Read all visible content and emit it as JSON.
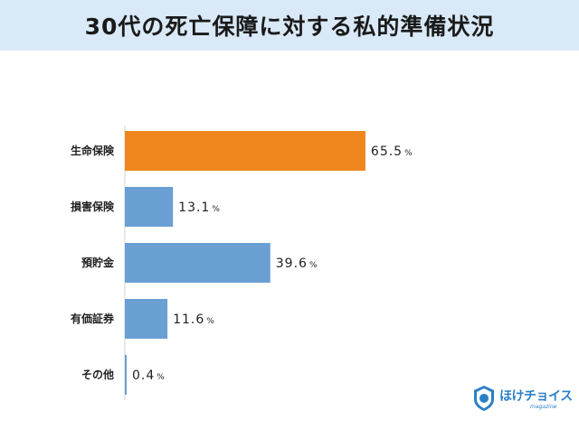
{
  "chart_data": {
    "type": "bar",
    "orientation": "horizontal",
    "title": "30代の死亡保障に対する私的準備状況",
    "categories": [
      "生命保険",
      "損害保険",
      "預貯金",
      "有価証券",
      "その他"
    ],
    "values": [
      65.5,
      13.1,
      39.6,
      11.6,
      0.4
    ],
    "value_labels": [
      "65.5",
      "13.1",
      "39.6",
      "11.6",
      "0.4"
    ],
    "unit": "%",
    "xlim": [
      0,
      100
    ],
    "grid": false,
    "legend": "none",
    "colors": {
      "highlight": "#f0861e",
      "default": "#6a9fd4",
      "title_bg": "#d9e9f7"
    }
  },
  "logo": {
    "name": "ほけチョイス",
    "tagline": "magazine",
    "icon": "hoke-choice-logo-icon"
  }
}
